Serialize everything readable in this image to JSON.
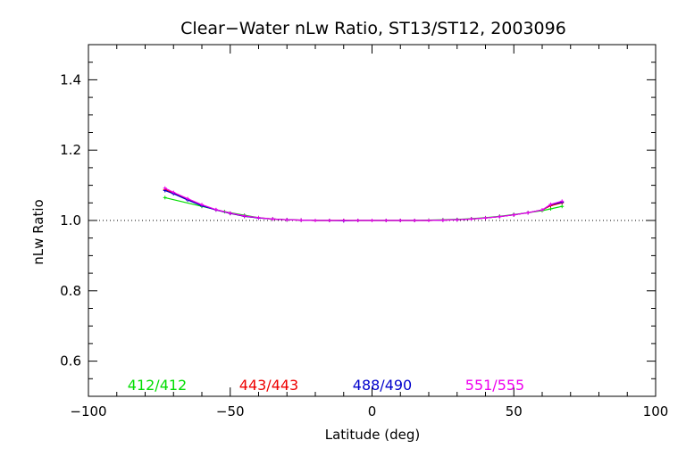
{
  "chart_data": {
    "type": "line",
    "title": "Clear−Water nLw Ratio, ST13/ST12, 2003096",
    "xlabel": "Latitude (deg)",
    "ylabel": "nLw Ratio",
    "xlim": [
      -100,
      100
    ],
    "ylim": [
      0.5,
      1.5
    ],
    "xticks": [
      -100,
      -50,
      0,
      50,
      100
    ],
    "xtick_labels": [
      "−100",
      "−50",
      "0",
      "50",
      "100"
    ],
    "yticks": [
      0.6,
      0.8,
      1.0,
      1.2,
      1.4
    ],
    "ytick_labels": [
      "0.6",
      "0.8",
      "1.0",
      "1.2",
      "1.4"
    ],
    "reference_line": {
      "y": 1.0,
      "style": "dotted"
    },
    "grid": false,
    "legend_placement": "bottom, inside plot",
    "series": [
      {
        "name": "412/412",
        "color": "#00dd00",
        "x": [
          -73,
          -60,
          -52,
          -45,
          -40,
          -35,
          -30,
          -25,
          -20,
          -15,
          -10,
          -5,
          0,
          5,
          10,
          15,
          20,
          25,
          30,
          35,
          40,
          45,
          50,
          55,
          60,
          63,
          67
        ],
        "y": [
          1.065,
          1.04,
          1.025,
          1.015,
          1.008,
          1.004,
          1.002,
          1.001,
          1.0,
          1.0,
          1.0,
          1.0,
          1.0,
          1.0,
          1.0,
          1.0,
          1.001,
          1.002,
          1.003,
          1.005,
          1.008,
          1.012,
          1.017,
          1.022,
          1.028,
          1.033,
          1.04
        ]
      },
      {
        "name": "443/443",
        "color": "#ee0000",
        "x": [
          -73,
          -70,
          -65,
          -60,
          -55,
          -50,
          -45,
          -40,
          -35,
          -30,
          -25,
          -20,
          -15,
          -10,
          -5,
          0,
          5,
          10,
          15,
          20,
          25,
          30,
          35,
          40,
          45,
          50,
          55,
          60,
          63,
          67
        ],
        "y": [
          1.088,
          1.078,
          1.06,
          1.043,
          1.03,
          1.02,
          1.012,
          1.007,
          1.004,
          1.002,
          1.001,
          1.0,
          1.0,
          1.0,
          1.0,
          1.0,
          1.0,
          1.0,
          1.0,
          1.0,
          1.001,
          1.002,
          1.004,
          1.007,
          1.011,
          1.016,
          1.022,
          1.03,
          1.042,
          1.05
        ]
      },
      {
        "name": "488/490",
        "color": "#0000cc",
        "x": [
          -73,
          -70,
          -65,
          -60,
          -55,
          -50,
          -45,
          -40,
          -35,
          -30,
          -25,
          -20,
          -15,
          -10,
          -5,
          0,
          5,
          10,
          15,
          20,
          25,
          30,
          35,
          40,
          45,
          50,
          55,
          60,
          63,
          67
        ],
        "y": [
          1.085,
          1.076,
          1.058,
          1.042,
          1.03,
          1.02,
          1.012,
          1.007,
          1.004,
          1.002,
          1.001,
          1.0,
          1.0,
          0.999,
          1.0,
          1.0,
          1.0,
          1.0,
          1.0,
          1.0,
          1.001,
          1.002,
          1.004,
          1.007,
          1.011,
          1.016,
          1.022,
          1.03,
          1.045,
          1.052
        ]
      },
      {
        "name": "551/555",
        "color": "#ee00ee",
        "x": [
          -73,
          -70,
          -65,
          -60,
          -55,
          -50,
          -45,
          -40,
          -35,
          -30,
          -25,
          -20,
          -15,
          -10,
          -5,
          0,
          5,
          10,
          15,
          20,
          25,
          30,
          35,
          40,
          45,
          50,
          55,
          60,
          63,
          67
        ],
        "y": [
          1.092,
          1.08,
          1.062,
          1.045,
          1.031,
          1.021,
          1.013,
          1.008,
          1.004,
          1.002,
          1.001,
          1.0,
          1.0,
          1.0,
          1.0,
          1.0,
          1.0,
          1.0,
          1.0,
          1.0,
          1.001,
          1.002,
          1.004,
          1.007,
          1.011,
          1.016,
          1.022,
          1.03,
          1.046,
          1.055
        ]
      }
    ]
  }
}
